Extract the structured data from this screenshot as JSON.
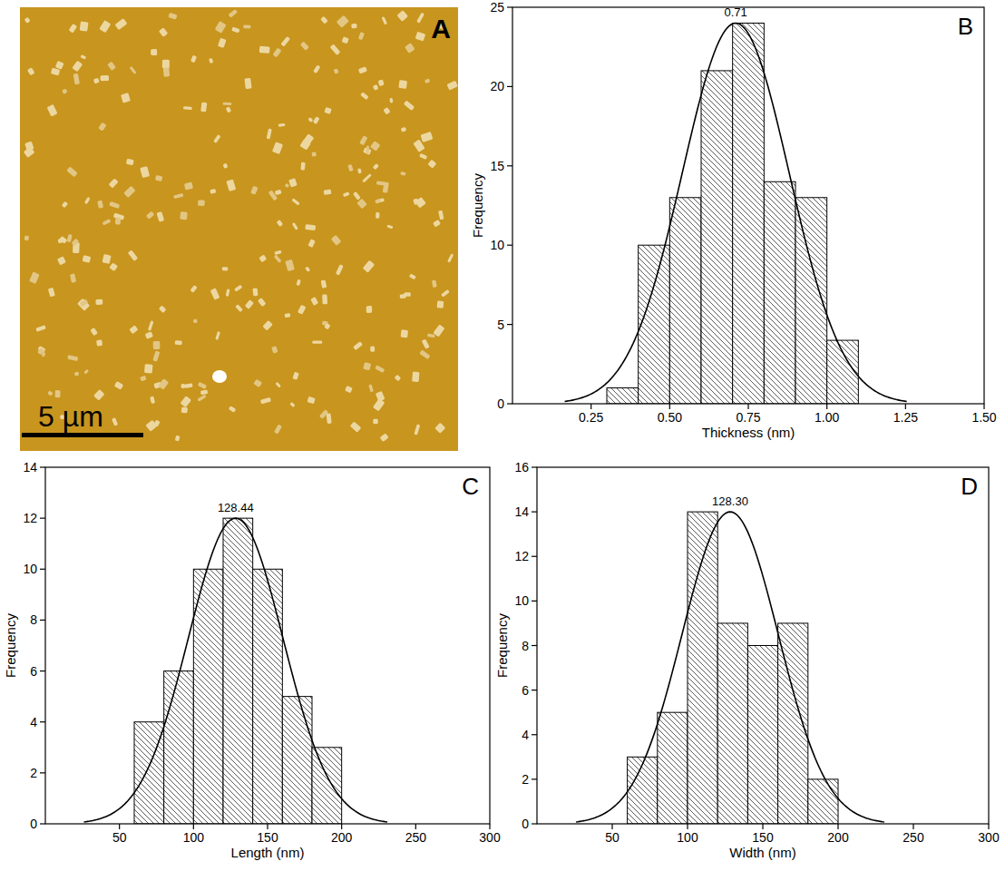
{
  "chart_data": [
    {
      "type": "image",
      "panel": "A",
      "annotations": [
        "5 µm"
      ]
    },
    {
      "type": "histogram",
      "panel": "B",
      "x_label": "Thickness (nm)",
      "y_label": "Frequency",
      "bins": [
        0.3,
        0.4,
        0.5,
        0.6,
        0.7,
        0.8,
        0.9,
        1.0,
        1.1
      ],
      "counts": [
        1,
        10,
        13,
        21,
        24,
        14,
        13,
        4
      ],
      "fit": {
        "center": 0.71,
        "center_label": "0.71",
        "amplitude": 24,
        "sigma": 0.17
      },
      "xlim": [
        0,
        1.5
      ],
      "xticks": [
        {
          "value": 0.25,
          "label": "0.25"
        },
        {
          "value": 0.5,
          "label": "0.50"
        },
        {
          "value": 0.75,
          "label": "0.75"
        },
        {
          "value": 1,
          "label": "1.00"
        },
        {
          "value": 1.25,
          "label": "1.25"
        },
        {
          "value": 1.5,
          "label": "1.50"
        }
      ],
      "ylim": [
        0,
        25
      ],
      "yticks": [
        0,
        5,
        10,
        15,
        20,
        25
      ]
    },
    {
      "type": "histogram",
      "panel": "C",
      "x_label": "Length (nm)",
      "y_label": "Frequency",
      "bins": [
        60,
        80,
        100,
        120,
        140,
        160,
        180,
        200
      ],
      "counts": [
        4,
        6,
        10,
        12,
        10,
        5,
        3
      ],
      "fit": {
        "center": 128.44,
        "center_label": "128.44",
        "amplitude": 12,
        "sigma": 32
      },
      "xlim": [
        0,
        300
      ],
      "xticks": [
        50,
        100,
        150,
        200,
        250,
        300
      ],
      "ylim": [
        0,
        14
      ],
      "yticks": [
        0,
        2,
        4,
        6,
        8,
        10,
        12,
        14
      ]
    },
    {
      "type": "histogram",
      "panel": "D",
      "x_label": "Width (nm)",
      "y_label": "Frequency",
      "bins": [
        60,
        80,
        100,
        120,
        140,
        160,
        180,
        200
      ],
      "counts": [
        3,
        5,
        14,
        9,
        8,
        9,
        2
      ],
      "fit": {
        "center": 128.3,
        "center_label": "128.30",
        "amplitude": 14,
        "sigma": 32
      },
      "xlim": [
        0,
        300
      ],
      "xticks": [
        50,
        100,
        150,
        200,
        250,
        300
      ],
      "ylim": [
        0,
        16
      ],
      "yticks": [
        0,
        2,
        4,
        6,
        8,
        10,
        12,
        14,
        16
      ]
    }
  ]
}
